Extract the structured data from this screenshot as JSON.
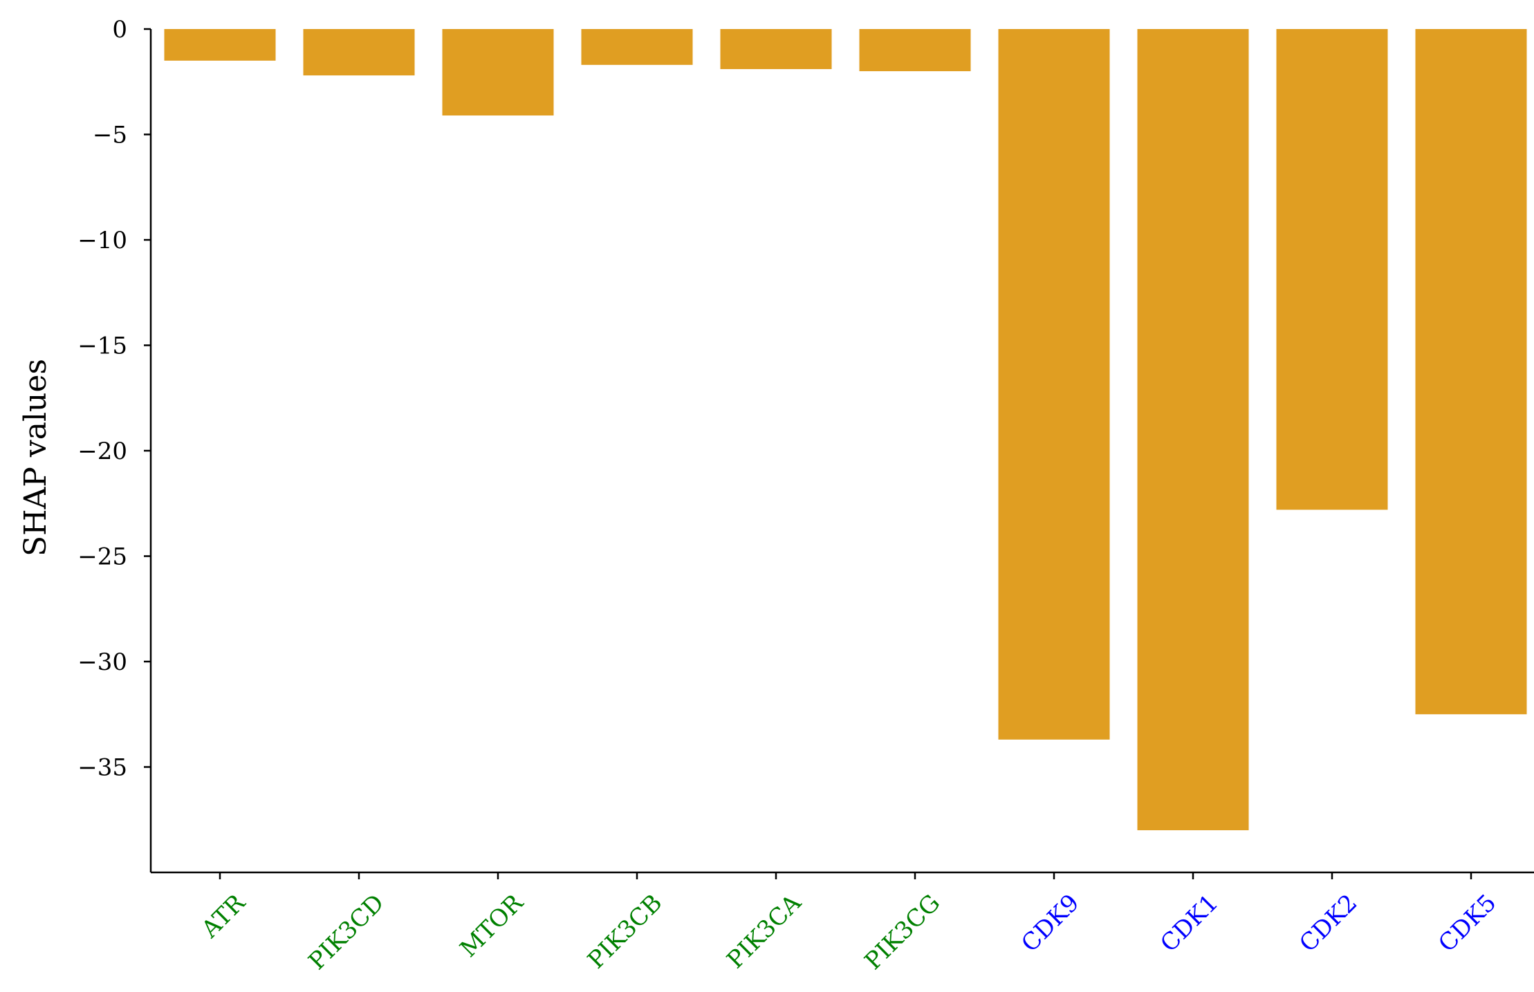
{
  "chart_data": {
    "type": "bar",
    "categories": [
      "ATR",
      "PIK3CD",
      "MTOR",
      "PIK3CB",
      "PIK3CA",
      "PIK3CG",
      "CDK9",
      "CDK1",
      "CDK2",
      "CDK5"
    ],
    "values": [
      -1.5,
      -2.2,
      -4.1,
      -1.7,
      -1.9,
      -2.0,
      -33.7,
      -38.0,
      -22.8,
      -32.5
    ],
    "category_colors": [
      "#008000",
      "#008000",
      "#008000",
      "#008000",
      "#008000",
      "#008000",
      "#0000ff",
      "#0000ff",
      "#0000ff",
      "#0000ff"
    ],
    "bar_color": "#e09e22",
    "title": "",
    "xlabel": "",
    "ylabel": "SHAP values",
    "ylim": [
      -40,
      0
    ],
    "yticks": [
      0,
      -5,
      -10,
      -15,
      -20,
      -25,
      -30,
      -35
    ],
    "ytick_labels": [
      "0",
      "−5",
      "−10",
      "−15",
      "−20",
      "−25",
      "−30",
      "−35"
    ],
    "grid": false,
    "legend": "none"
  }
}
